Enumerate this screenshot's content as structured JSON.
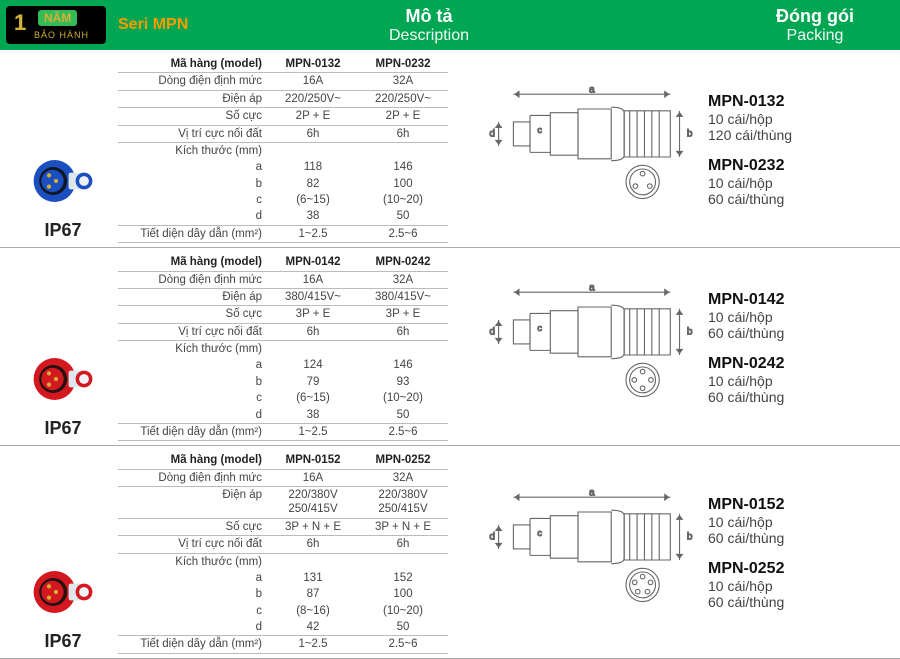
{
  "header": {
    "badge_one": "1",
    "badge_nam": "NĂM",
    "badge_bh": "BẢO HÀNH",
    "series": "Seri MPN",
    "desc_vn": "Mô tả",
    "desc_en": "Description",
    "pack_vn": "Đóng gói",
    "pack_en": "Packing"
  },
  "labels": {
    "model": "Mã hàng (model)",
    "rated_current": "Dòng điện định mức",
    "voltage": "Điện áp",
    "poles": "Số cực",
    "earth_pos": "Vị trí cực nối đất",
    "dims": "Kích thước (mm)",
    "wire": "Tiết diện dây dẫn (mm²)",
    "a": "a",
    "b": "b",
    "c": "c",
    "d": "d",
    "ip": "IP67",
    "per_box": "10 cái/hộp"
  },
  "sections": [
    {
      "plug_body": "#1b4fbf",
      "plug_ring": "#1b4fbf",
      "models": [
        "MPN-0132",
        "MPN-0232"
      ],
      "current": [
        "16A",
        "32A"
      ],
      "voltage": [
        "220/250V~",
        "220/250V~"
      ],
      "poles": [
        "2P + E",
        "2P + E"
      ],
      "earth": [
        "6h",
        "6h"
      ],
      "a": [
        "118",
        "146"
      ],
      "b": [
        "82",
        "100"
      ],
      "c": [
        "(6~15)",
        "(10~20)"
      ],
      "d": [
        "38",
        "50"
      ],
      "wire": [
        "1~2.5",
        "2.5~6"
      ],
      "pins": 3,
      "pack": [
        {
          "model": "MPN-0132",
          "carton": "120 cái/thùng"
        },
        {
          "model": "MPN-0232",
          "carton": "60 cái/thùng"
        }
      ]
    },
    {
      "plug_body": "#d3191f",
      "plug_ring": "#d3191f",
      "models": [
        "MPN-0142",
        "MPN-0242"
      ],
      "current": [
        "16A",
        "32A"
      ],
      "voltage": [
        "380/415V~",
        "380/415V~"
      ],
      "poles": [
        "3P + E",
        "3P + E"
      ],
      "earth": [
        "6h",
        "6h"
      ],
      "a": [
        "124",
        "146"
      ],
      "b": [
        "79",
        "93"
      ],
      "c": [
        "(6~15)",
        "(10~20)"
      ],
      "d": [
        "38",
        "50"
      ],
      "wire": [
        "1~2.5",
        "2.5~6"
      ],
      "pins": 4,
      "pack": [
        {
          "model": "MPN-0142",
          "carton": "60 cái/thùng"
        },
        {
          "model": "MPN-0242",
          "carton": "60 cái/thùng"
        }
      ]
    },
    {
      "plug_body": "#d3191f",
      "plug_ring": "#d3191f",
      "models": [
        "MPN-0152",
        "MPN-0252"
      ],
      "current": [
        "16A",
        "32A"
      ],
      "voltage": [
        "220/380V\n250/415V",
        "220/380V\n250/415V"
      ],
      "poles": [
        "3P + N + E",
        "3P + N + E"
      ],
      "earth": [
        "6h",
        "6h"
      ],
      "a": [
        "131",
        "152"
      ],
      "b": [
        "87",
        "100"
      ],
      "c": [
        "(8~16)",
        "(10~20)"
      ],
      "d": [
        "42",
        "50"
      ],
      "wire": [
        "1~2.5",
        "2.5~6"
      ],
      "pins": 5,
      "pack": [
        {
          "model": "MPN-0152",
          "carton": "60 cái/thùng"
        },
        {
          "model": "MPN-0252",
          "carton": "60 cái/thùng"
        }
      ]
    }
  ],
  "diagram_stroke": "#666"
}
